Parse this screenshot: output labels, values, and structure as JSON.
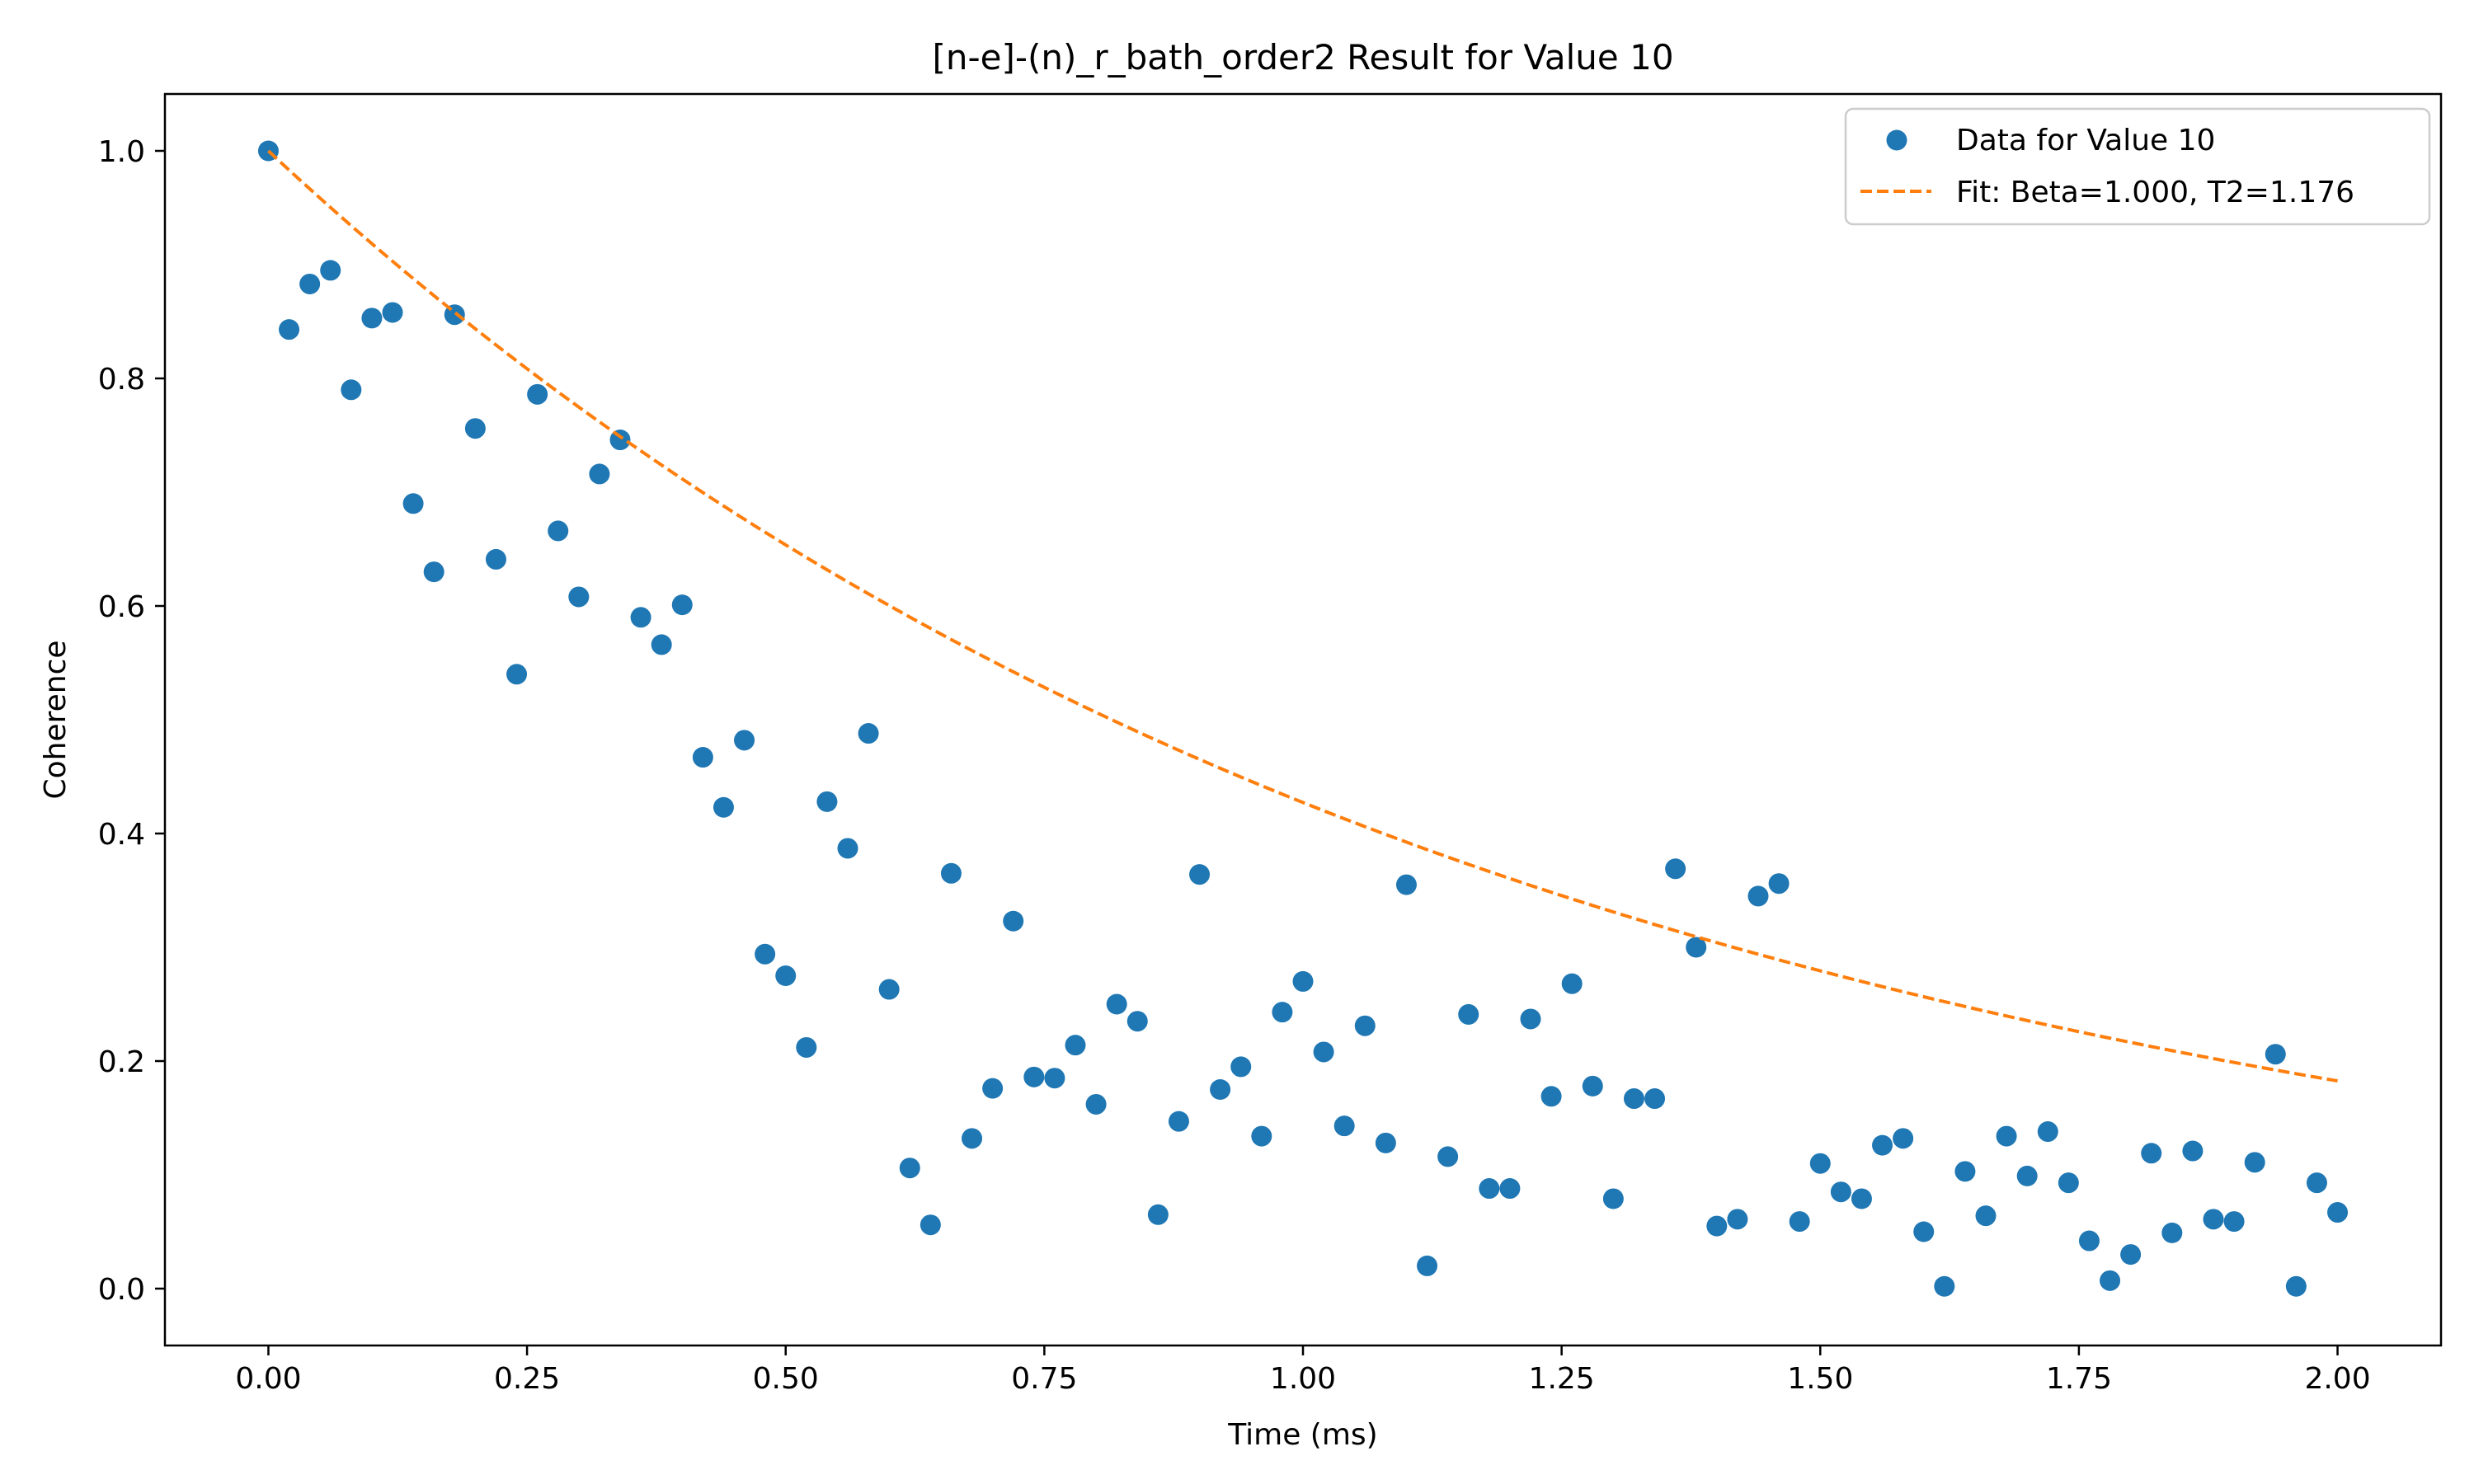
{
  "chart_data": {
    "type": "scatter",
    "title": "[n-e]-(n)_r_bath_order2 Result for Value 10",
    "xlabel": "Time (ms)",
    "ylabel": "Coherence",
    "xlim": [
      -0.1,
      2.1
    ],
    "ylim": [
      -0.05,
      1.05
    ],
    "xticks": [
      0.0,
      0.25,
      0.5,
      0.75,
      1.0,
      1.25,
      1.5,
      1.75,
      2.0
    ],
    "xtick_labels": [
      "0.00",
      "0.25",
      "0.50",
      "0.75",
      "1.00",
      "1.25",
      "1.50",
      "1.75",
      "2.00"
    ],
    "yticks": [
      0.0,
      0.2,
      0.4,
      0.6,
      0.8,
      1.0
    ],
    "ytick_labels": [
      "0.0",
      "0.2",
      "0.4",
      "0.6",
      "0.8",
      "1.0"
    ],
    "grid": false,
    "legend_position": "top-right",
    "series": [
      {
        "name": "Data for Value 10",
        "kind": "scatter",
        "color": "#1f77b4",
        "x": [
          0.0,
          0.02,
          0.04,
          0.06,
          0.08,
          0.1,
          0.12,
          0.14,
          0.16,
          0.18,
          0.2,
          0.22,
          0.24,
          0.26,
          0.28,
          0.3,
          0.32,
          0.34,
          0.36,
          0.38,
          0.4,
          0.42,
          0.44,
          0.46,
          0.48,
          0.5,
          0.52,
          0.54,
          0.56,
          0.58,
          0.6,
          0.62,
          0.64,
          0.66,
          0.68,
          0.7,
          0.72,
          0.74,
          0.76,
          0.78,
          0.8,
          0.82,
          0.84,
          0.86,
          0.88,
          0.9,
          0.92,
          0.94,
          0.96,
          0.98,
          1.0,
          1.02,
          1.04,
          1.06,
          1.08,
          1.1,
          1.12,
          1.14,
          1.16,
          1.18,
          1.2,
          1.22,
          1.24,
          1.26,
          1.28,
          1.3,
          1.32,
          1.34,
          1.36,
          1.38,
          1.4,
          1.42,
          1.44,
          1.46,
          1.48,
          1.5,
          1.52,
          1.54,
          1.56,
          1.58,
          1.6,
          1.62,
          1.64,
          1.66,
          1.68,
          1.7,
          1.72,
          1.74,
          1.76,
          1.78,
          1.8,
          1.82,
          1.84,
          1.86,
          1.88,
          1.9,
          1.92,
          1.94,
          1.96,
          1.98,
          2.0
        ],
        "y": [
          1.0,
          0.843,
          0.883,
          0.895,
          0.79,
          0.853,
          0.858,
          0.69,
          0.63,
          0.856,
          0.756,
          0.641,
          0.54,
          0.786,
          0.666,
          0.608,
          0.716,
          0.746,
          0.59,
          0.566,
          0.601,
          0.467,
          0.423,
          0.482,
          0.294,
          0.275,
          0.212,
          0.428,
          0.387,
          0.488,
          0.263,
          0.106,
          0.056,
          0.365,
          0.132,
          0.176,
          0.323,
          0.186,
          0.185,
          0.214,
          0.162,
          0.25,
          0.235,
          0.065,
          0.147,
          0.364,
          0.175,
          0.195,
          0.134,
          0.243,
          0.27,
          0.208,
          0.143,
          0.231,
          0.128,
          0.355,
          0.02,
          0.116,
          0.241,
          0.088,
          0.088,
          0.237,
          0.169,
          0.268,
          0.178,
          0.079,
          0.167,
          0.167,
          0.369,
          0.3,
          0.055,
          0.061,
          0.345,
          0.356,
          0.059,
          0.11,
          0.085,
          0.079,
          0.126,
          0.132,
          0.05,
          0.002,
          0.103,
          0.064,
          0.134,
          0.099,
          0.138,
          0.093,
          0.042,
          0.007,
          0.03,
          0.119,
          0.049,
          0.121,
          0.061,
          0.059,
          0.111,
          0.206,
          0.002,
          0.093,
          0.067
        ]
      },
      {
        "name": "Fit: Beta=1.000, T2=1.176",
        "kind": "fit-line",
        "color": "#ff7f0e",
        "beta": 1.0,
        "t2": 1.176
      }
    ]
  }
}
